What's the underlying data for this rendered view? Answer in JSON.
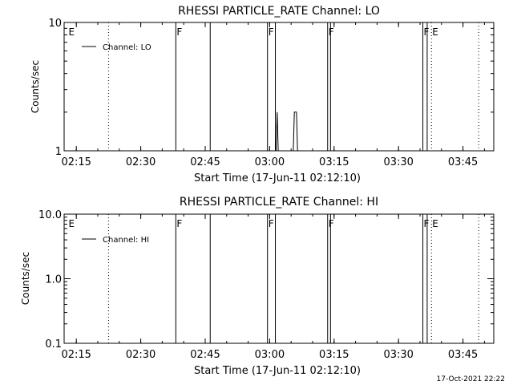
{
  "window": {
    "background": "#ffffff",
    "ink": "#000000"
  },
  "footer_stamp": "17-Oct-2021 22:22",
  "chart_data": [
    {
      "type": "line",
      "title": "RHESSI PARTICLE_RATE Channel: LO",
      "xlabel": "Start Time (17-Jun-11 02:12:10)",
      "ylabel": "Counts/sec",
      "x_axis": "time",
      "x_start": "02:12:10",
      "xlim": [
        "02:12:10",
        "03:52:10"
      ],
      "xticks": [
        "02:15",
        "02:30",
        "02:45",
        "03:00",
        "03:15",
        "03:30",
        "03:45"
      ],
      "ylim": [
        1,
        10
      ],
      "yscale": "log",
      "yticks": [
        "1",
        "10"
      ],
      "legend": {
        "position": "top-left",
        "entries": [
          "Channel: LO"
        ]
      },
      "grid": false,
      "series": [
        {
          "name": "Channel: LO",
          "x": [
            "03:01:30",
            "03:01:45",
            "03:02:00",
            "03:02:15",
            "03:05:30",
            "03:05:45",
            "03:06:15",
            "03:06:30"
          ],
          "values": [
            1,
            2,
            1,
            1,
            1,
            2,
            2,
            1
          ]
        }
      ],
      "vertical_markers": [
        {
          "time": "02:13:00",
          "label": "E",
          "style": "none"
        },
        {
          "time": "02:22:30",
          "label": "",
          "style": "dotted"
        },
        {
          "time": "02:38:10",
          "label": "F",
          "style": "solid"
        },
        {
          "time": "02:46:10",
          "label": "",
          "style": "solid"
        },
        {
          "time": "02:59:30",
          "label": "F",
          "style": "solid"
        },
        {
          "time": "03:01:20",
          "label": "",
          "style": "solid"
        },
        {
          "time": "03:13:30",
          "label": "F",
          "style": "solid"
        },
        {
          "time": "03:14:10",
          "label": "",
          "style": "solid"
        },
        {
          "time": "03:35:40",
          "label": "F",
          "style": "solid"
        },
        {
          "time": "03:36:40",
          "label": "",
          "style": "solid"
        },
        {
          "time": "03:37:40",
          "label": "E",
          "style": "dotted"
        },
        {
          "time": "03:48:40",
          "label": "",
          "style": "dotted"
        }
      ]
    },
    {
      "type": "line",
      "title": "RHESSI PARTICLE_RATE Channel: HI",
      "xlabel": "Start Time (17-Jun-11 02:12:10)",
      "ylabel": "Counts/sec",
      "x_axis": "time",
      "x_start": "02:12:10",
      "xlim": [
        "02:12:10",
        "03:52:10"
      ],
      "xticks": [
        "02:15",
        "02:30",
        "02:45",
        "03:00",
        "03:15",
        "03:30",
        "03:45"
      ],
      "ylim": [
        0.1,
        10
      ],
      "yscale": "log",
      "yticks": [
        "0.1",
        "1.0",
        "10.0"
      ],
      "legend": {
        "position": "top-left",
        "entries": [
          "Channel: HI"
        ]
      },
      "grid": false,
      "series": [
        {
          "name": "Channel: HI",
          "x": [],
          "values": []
        }
      ],
      "vertical_markers": [
        {
          "time": "02:13:00",
          "label": "E",
          "style": "none"
        },
        {
          "time": "02:22:30",
          "label": "",
          "style": "dotted"
        },
        {
          "time": "02:38:10",
          "label": "F",
          "style": "solid"
        },
        {
          "time": "02:46:10",
          "label": "",
          "style": "solid"
        },
        {
          "time": "02:59:30",
          "label": "F",
          "style": "solid"
        },
        {
          "time": "03:01:20",
          "label": "",
          "style": "solid"
        },
        {
          "time": "03:13:30",
          "label": "F",
          "style": "solid"
        },
        {
          "time": "03:14:10",
          "label": "",
          "style": "solid"
        },
        {
          "time": "03:35:40",
          "label": "F",
          "style": "solid"
        },
        {
          "time": "03:36:40",
          "label": "",
          "style": "solid"
        },
        {
          "time": "03:37:40",
          "label": "E",
          "style": "dotted"
        },
        {
          "time": "03:48:40",
          "label": "",
          "style": "dotted"
        }
      ]
    }
  ]
}
